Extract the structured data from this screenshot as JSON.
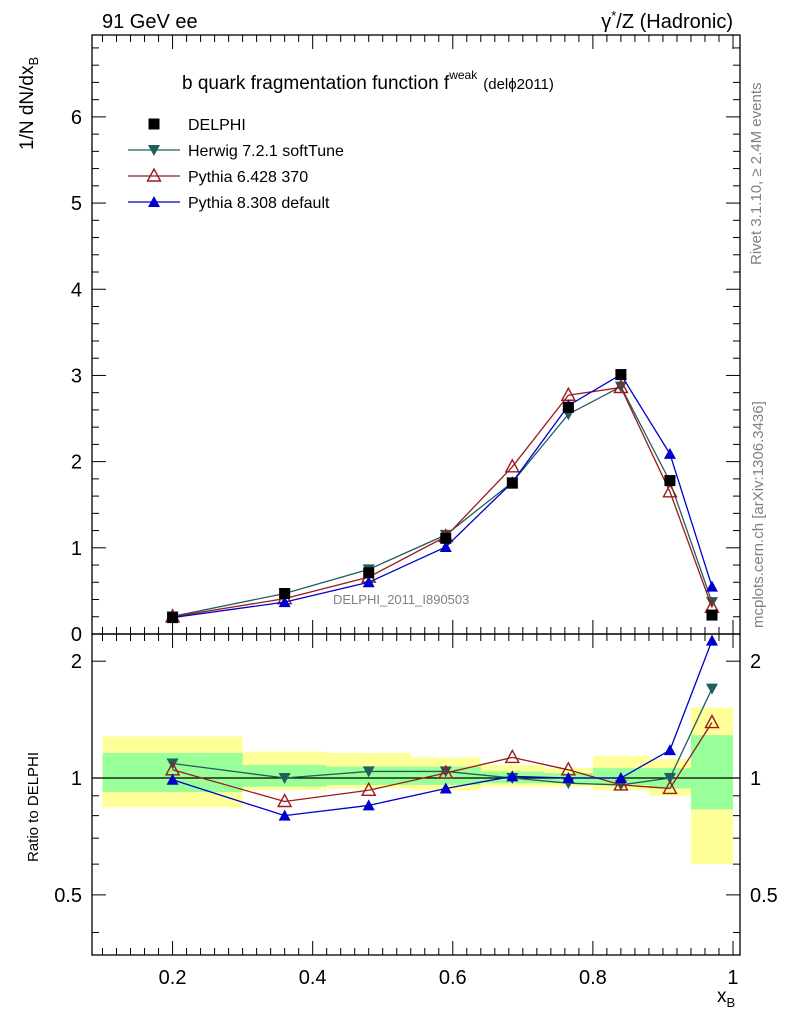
{
  "header": {
    "left": "91 GeV ee",
    "right_pre": "γ",
    "right_sup": "*",
    "right_post": "/Z (Hadronic)"
  },
  "side_labels": {
    "rivet": "Rivet 3.1.10, ≥ 2.4M events",
    "mcplots": "mcplots.cern.ch [arXiv:1306.3436]"
  },
  "chart_data": [
    {
      "type": "line",
      "title_main": "b quark fragmentation function f",
      "title_sup": "weak",
      "title_paren": "(delϕ2011)",
      "xlabel_main": "x",
      "xlabel_sub": "B",
      "ylabel_main": "1/N dN/dx",
      "ylabel_sub": "B",
      "xlim": [
        0.085,
        1.01
      ],
      "ylim": [
        0,
        6.95
      ],
      "yticks": [
        0,
        1,
        2,
        3,
        4,
        5,
        6
      ],
      "ytick_labels": [
        "0",
        "1",
        "2",
        "3",
        "4",
        "5",
        "6"
      ],
      "watermark": "DELPHI_2011_I890503",
      "legend_position": "top-left",
      "x": [
        0.2,
        0.36,
        0.48,
        0.59,
        0.685,
        0.765,
        0.84,
        0.91,
        0.97
      ],
      "series": [
        {
          "name": "DELPHI",
          "marker": "square",
          "color": "#000000",
          "values": [
            0.19,
            0.47,
            0.71,
            1.11,
            1.75,
            2.63,
            3.01,
            1.78,
            0.22
          ]
        },
        {
          "name": "Herwig 7.2.1 softTune",
          "marker": "triangle-down",
          "color": "#1f5f5f",
          "values": [
            0.205,
            0.47,
            0.75,
            1.15,
            1.76,
            2.55,
            2.87,
            1.77,
            0.37
          ]
        },
        {
          "name": "Pythia 6.428 370",
          "marker": "triangle-open",
          "color": "#9b1a1a",
          "values": [
            0.2,
            0.41,
            0.66,
            1.13,
            1.94,
            2.77,
            2.86,
            1.65,
            0.31
          ]
        },
        {
          "name": "Pythia 8.308 default",
          "marker": "triangle-up",
          "color": "#0000cc",
          "values": [
            0.19,
            0.37,
            0.6,
            1.01,
            1.76,
            2.65,
            3.01,
            2.09,
            0.55
          ]
        }
      ]
    },
    {
      "type": "line",
      "ylabel": "Ratio to DELPHI",
      "xlim": [
        0.085,
        1.01
      ],
      "ylim": [
        0.35,
        2.35
      ],
      "yticks": [
        0.5,
        1,
        2
      ],
      "ytick_labels": [
        "0.5",
        "1",
        "2"
      ],
      "xticks": [
        0.2,
        0.4,
        0.6,
        0.8,
        1.0
      ],
      "xtick_labels": [
        "0.2",
        "0.4",
        "0.6",
        "0.8",
        "1"
      ],
      "bands": {
        "edges": [
          0.1,
          0.3,
          0.42,
          0.54,
          0.64,
          0.73,
          0.8,
          0.88,
          0.94,
          1.0
        ],
        "yellow": [
          [
            0.84,
            1.28
          ],
          [
            0.93,
            1.17
          ],
          [
            0.94,
            1.16
          ],
          [
            0.93,
            1.13
          ],
          [
            0.95,
            1.08
          ],
          [
            0.95,
            1.06
          ],
          [
            0.93,
            1.14
          ],
          [
            0.9,
            1.12
          ],
          [
            0.6,
            1.52
          ]
        ],
        "green": [
          [
            0.92,
            1.16
          ],
          [
            0.95,
            1.08
          ],
          [
            0.96,
            1.07
          ],
          [
            0.96,
            1.07
          ],
          [
            0.97,
            1.04
          ],
          [
            0.97,
            1.03
          ],
          [
            0.96,
            1.06
          ],
          [
            0.94,
            1.06
          ],
          [
            0.83,
            1.29
          ]
        ]
      },
      "series": [
        {
          "name": "Herwig 7.2.1 softTune",
          "marker": "triangle-down",
          "color": "#1f5f5f",
          "values": [
            1.09,
            1.0,
            1.04,
            1.04,
            1.0,
            0.97,
            0.96,
            1.0,
            1.7
          ]
        },
        {
          "name": "Pythia 6.428 370",
          "marker": "triangle-open",
          "color": "#9b1a1a",
          "values": [
            1.05,
            0.87,
            0.93,
            1.03,
            1.13,
            1.05,
            0.96,
            0.94,
            1.39
          ]
        },
        {
          "name": "Pythia 8.308 default",
          "marker": "triangle-up",
          "color": "#0000cc",
          "values": [
            0.99,
            0.8,
            0.85,
            0.94,
            1.01,
            1.0,
            1.0,
            1.18,
            2.26
          ]
        }
      ]
    }
  ]
}
